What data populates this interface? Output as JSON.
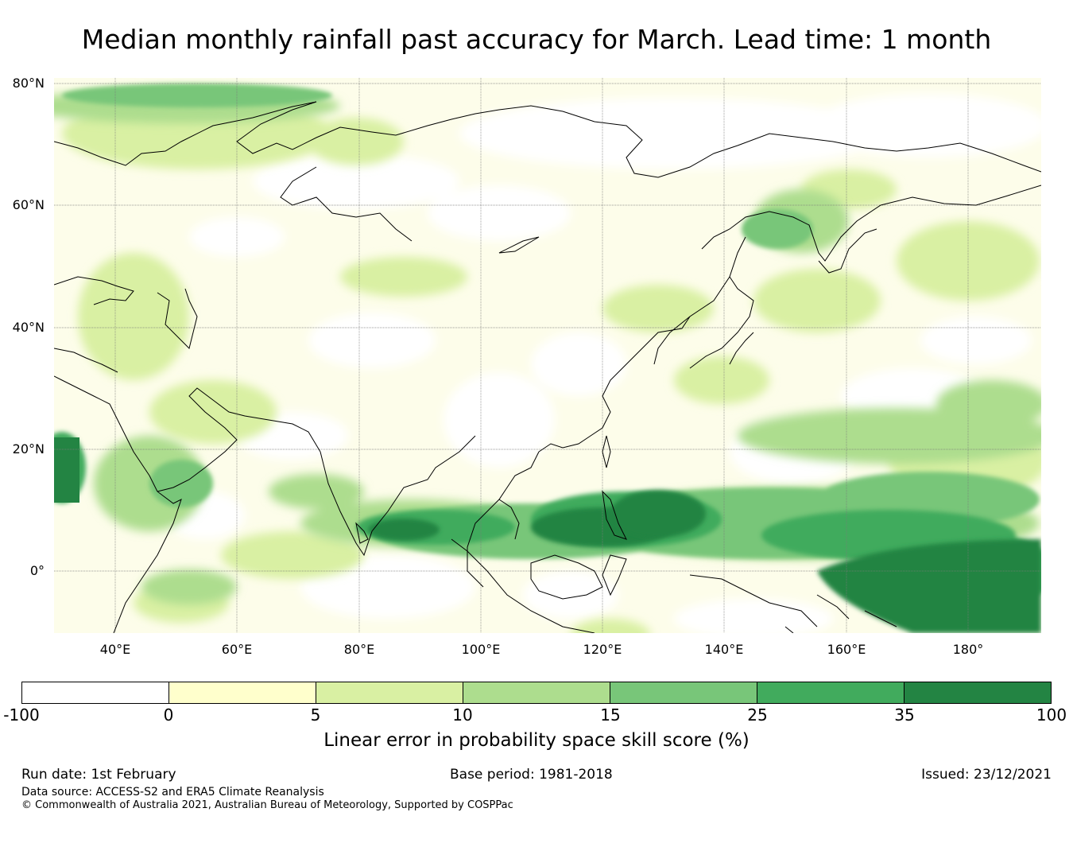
{
  "title": "Median monthly rainfall past accuracy for March. Lead time: 1 month",
  "map": {
    "lat_labels": [
      "80°N",
      "60°N",
      "40°N",
      "20°N",
      "0°"
    ],
    "lon_labels": [
      "40°E",
      "60°E",
      "80°E",
      "100°E",
      "120°E",
      "140°E",
      "160°E",
      "180°"
    ],
    "extent": {
      "lon_min": 30,
      "lon_max": 192.5,
      "lat_min": -10,
      "lat_max": 81
    }
  },
  "colorbar": {
    "ticks": [
      "-100",
      "0",
      "5",
      "10",
      "15",
      "25",
      "35",
      "100"
    ],
    "colors": [
      "#ffffff",
      "#ffffcc",
      "#d9f0a3",
      "#addd8e",
      "#78c679",
      "#41ab5d",
      "#238443"
    ],
    "label": "Linear error in probability space skill score (%)"
  },
  "footer": {
    "run_date": "Run date: 1st February",
    "base_period": "Base period: 1981-2018",
    "issued": "Issued: 23/12/2021",
    "data_source": "Data source: ACCESS-S2 and ERA5 Climate Reanalysis",
    "copyright": "© Commonwealth of Australia 2021, Australian Bureau of Meteorology, Supported by COSPPac"
  }
}
